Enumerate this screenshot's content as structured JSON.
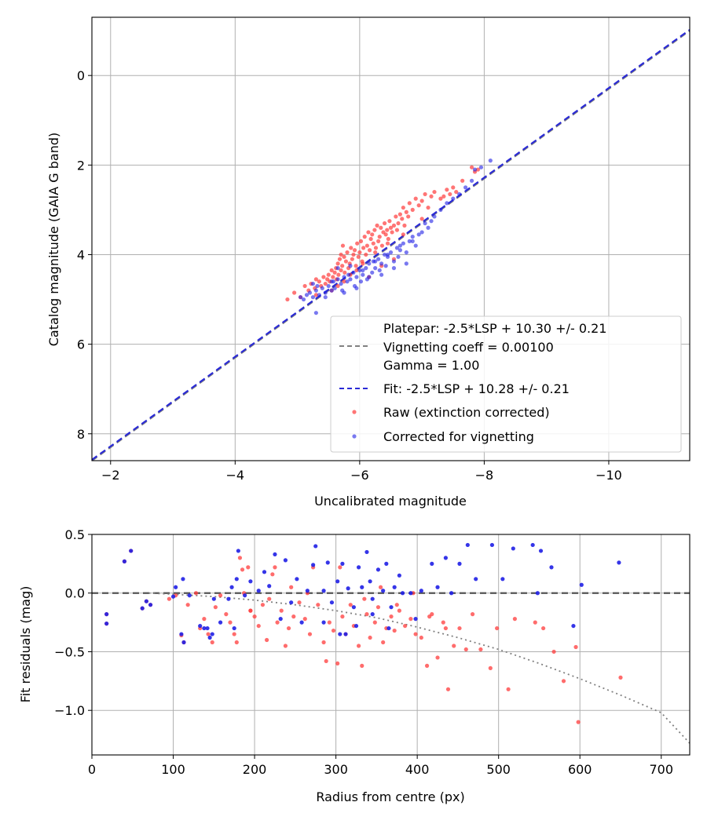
{
  "chart_data": [
    {
      "type": "scatter",
      "xlabel": "Uncalibrated magnitude",
      "ylabel": "Catalog magnitude (GAIA G band)",
      "xlim": [
        -1.7,
        -11.3
      ],
      "ylim": [
        8.6,
        -1.3
      ],
      "x_inverted": true,
      "y_inverted": true,
      "xticks": [
        -2,
        -4,
        -6,
        -8,
        -10
      ],
      "xtick_labels": [
        "−2",
        "−4",
        "−6",
        "−8",
        "−10"
      ],
      "yticks": [
        0,
        2,
        4,
        6,
        8
      ],
      "ytick_labels": [
        "0",
        "2",
        "4",
        "6",
        "8"
      ],
      "grid": true,
      "legend_position": "lower-right",
      "lines": [
        {
          "name": "Platepar: -2.5*LSP + 10.30 +/- 0.21\nVignetting coeff = 0.00100\nGamma = 1.00",
          "color": "#808080",
          "style": "dashed",
          "x": [
            -1.7,
            -11.3
          ],
          "y": [
            8.6,
            -1.0
          ]
        },
        {
          "name": "Fit: -2.5*LSP + 10.28 +/- 0.21",
          "color": "#2a2ad6",
          "style": "dashed",
          "x": [
            -1.7,
            -11.3
          ],
          "y": [
            8.58,
            -1.02
          ]
        }
      ],
      "series": [
        {
          "name": "Raw (extinction corrected)",
          "color": "#ff3b3b",
          "x": [
            -4.84,
            -4.95,
            -5.05,
            -5.12,
            -5.18,
            -5.22,
            -5.28,
            -5.3,
            -5.3,
            -5.35,
            -5.38,
            -5.42,
            -5.45,
            -5.48,
            -5.5,
            -5.52,
            -5.55,
            -5.57,
            -5.6,
            -5.62,
            -5.63,
            -5.65,
            -5.66,
            -5.68,
            -5.7,
            -5.72,
            -5.73,
            -5.75,
            -5.76,
            -5.78,
            -5.8,
            -5.82,
            -5.84,
            -5.86,
            -5.88,
            -5.9,
            -5.92,
            -5.94,
            -5.96,
            -5.98,
            -6.0,
            -6.02,
            -6.04,
            -6.06,
            -6.08,
            -6.1,
            -6.12,
            -6.14,
            -6.16,
            -6.18,
            -6.2,
            -6.22,
            -6.24,
            -6.26,
            -6.28,
            -6.3,
            -6.32,
            -6.34,
            -6.36,
            -6.38,
            -6.4,
            -6.42,
            -6.44,
            -6.46,
            -6.48,
            -6.5,
            -6.52,
            -6.55,
            -6.58,
            -6.6,
            -6.62,
            -6.65,
            -6.68,
            -6.7,
            -6.72,
            -6.75,
            -6.78,
            -6.8,
            -6.85,
            -6.9,
            -6.95,
            -7.0,
            -7.05,
            -7.1,
            -7.15,
            -7.2,
            -7.3,
            -7.35,
            -7.4,
            -7.45,
            -7.5,
            -7.55,
            -7.65,
            -7.8,
            -7.85,
            -7.9,
            -5.75,
            -5.95,
            -6.15,
            -6.35,
            -6.55,
            -5.65,
            -5.85,
            -6.05,
            -6.25,
            -6.45,
            -6.7,
            -7.0,
            -5.55,
            -5.7
          ],
          "y": [
            5.0,
            4.85,
            4.95,
            4.7,
            4.8,
            4.65,
            4.75,
            4.55,
            4.9,
            4.6,
            4.7,
            4.5,
            4.65,
            4.55,
            4.45,
            4.6,
            4.35,
            4.5,
            4.4,
            4.3,
            4.55,
            4.2,
            4.45,
            4.1,
            4.35,
            4.25,
            3.8,
            4.05,
            4.4,
            4.15,
            3.95,
            4.3,
            4.2,
            3.85,
            4.1,
            4.0,
            3.9,
            4.25,
            3.75,
            4.05,
            3.95,
            3.7,
            4.15,
            3.85,
            3.6,
            4.0,
            3.8,
            3.5,
            3.9,
            3.65,
            3.55,
            3.75,
            3.45,
            3.85,
            3.35,
            3.7,
            3.6,
            3.4,
            3.8,
            3.5,
            3.3,
            3.55,
            3.45,
            3.65,
            3.25,
            3.4,
            3.5,
            3.35,
            3.15,
            3.45,
            3.3,
            3.1,
            3.2,
            2.95,
            3.35,
            3.05,
            3.15,
            2.85,
            3.0,
            2.75,
            2.9,
            2.8,
            2.65,
            2.95,
            2.7,
            2.6,
            2.75,
            2.7,
            2.55,
            2.65,
            2.5,
            2.6,
            2.35,
            2.05,
            2.15,
            2.1,
            4.6,
            4.35,
            4.5,
            4.25,
            4.1,
            4.7,
            4.45,
            4.2,
            3.95,
            3.75,
            3.55,
            3.2,
            4.8,
            4.0
          ]
        },
        {
          "name": "Corrected for vignetting",
          "color": "#1f1fe6",
          "x": [
            -5.05,
            -5.1,
            -5.15,
            -5.2,
            -5.25,
            -5.3,
            -5.32,
            -5.35,
            -5.4,
            -5.45,
            -5.5,
            -5.55,
            -5.58,
            -5.6,
            -5.65,
            -5.7,
            -5.72,
            -5.75,
            -5.8,
            -5.82,
            -5.85,
            -5.9,
            -5.92,
            -5.95,
            -6.0,
            -6.02,
            -6.05,
            -6.1,
            -6.12,
            -6.15,
            -6.2,
            -6.22,
            -6.25,
            -6.3,
            -6.32,
            -6.35,
            -6.4,
            -6.42,
            -6.45,
            -6.5,
            -6.55,
            -6.6,
            -6.62,
            -6.65,
            -6.7,
            -6.75,
            -6.8,
            -6.85,
            -6.9,
            -6.95,
            -7.0,
            -7.05,
            -7.1,
            -7.2,
            -7.3,
            -7.4,
            -7.5,
            -7.6,
            -7.7,
            -7.8,
            -7.85,
            -7.95,
            -8.1,
            -5.25,
            -5.3,
            -5.55,
            -5.75,
            -5.95,
            -6.15,
            -6.35,
            -6.55,
            -6.75,
            -5.45,
            -5.65,
            -5.85,
            -6.05,
            -6.25,
            -6.45,
            -6.65,
            -6.85,
            -7.15
          ],
          "y": [
            4.95,
            5.0,
            4.9,
            4.85,
            4.95,
            4.8,
            4.7,
            4.9,
            4.75,
            4.85,
            4.7,
            4.8,
            4.6,
            4.75,
            4.55,
            4.65,
            4.8,
            4.5,
            4.6,
            4.45,
            4.55,
            4.4,
            4.7,
            4.5,
            4.35,
            4.6,
            4.45,
            4.3,
            4.55,
            4.2,
            4.4,
            4.15,
            4.3,
            4.1,
            4.35,
            4.2,
            4.0,
            4.25,
            4.05,
            3.95,
            4.15,
            3.85,
            4.05,
            3.9,
            3.75,
            3.95,
            3.7,
            3.6,
            3.8,
            3.55,
            3.5,
            3.3,
            3.4,
            3.15,
            3.0,
            2.85,
            2.75,
            2.65,
            2.5,
            2.35,
            2.1,
            2.05,
            1.9,
            4.65,
            5.3,
            4.6,
            4.85,
            4.75,
            4.5,
            4.45,
            4.3,
            4.2,
            4.95,
            4.3,
            4.25,
            4.35,
            4.15,
            4.0,
            3.8,
            3.7,
            3.25
          ]
        }
      ]
    },
    {
      "type": "scatter",
      "xlabel": "Radius from centre (px)",
      "ylabel": "Fit residuals (mag)",
      "xlim": [
        0,
        735
      ],
      "ylim": [
        -1.38,
        0.5
      ],
      "xticks": [
        0,
        100,
        200,
        300,
        400,
        500,
        600,
        700
      ],
      "xtick_labels": [
        "0",
        "100",
        "200",
        "300",
        "400",
        "500",
        "600",
        "700"
      ],
      "yticks": [
        0.5,
        0.0,
        -0.5,
        -1.0
      ],
      "ytick_labels": [
        "0.5",
        "0.0",
        "−0.5",
        "−1.0"
      ],
      "grid": true,
      "lines": [
        {
          "color": "#555555",
          "style": "dashed",
          "x": [
            0,
            735
          ],
          "y": [
            0,
            0
          ]
        },
        {
          "color": "#808080",
          "style": "dotted",
          "x": [
            70,
            100,
            150,
            200,
            250,
            300,
            350,
            400,
            450,
            500,
            550,
            600,
            650,
            700,
            735
          ],
          "y": [
            0.0,
            -0.01,
            -0.03,
            -0.06,
            -0.1,
            -0.15,
            -0.21,
            -0.29,
            -0.38,
            -0.48,
            -0.6,
            -0.73,
            -0.87,
            -1.02,
            -1.28
          ]
        }
      ],
      "series": [
        {
          "name": "Raw",
          "color": "#ff3b3b",
          "x": [
            18,
            18,
            40,
            48,
            62,
            67,
            72,
            95,
            103,
            110,
            113,
            118,
            128,
            133,
            138,
            143,
            148,
            152,
            158,
            165,
            170,
            175,
            178,
            182,
            187,
            192,
            195,
            200,
            205,
            210,
            215,
            218,
            222,
            228,
            233,
            238,
            242,
            248,
            255,
            262,
            268,
            272,
            278,
            285,
            288,
            292,
            297,
            302,
            308,
            312,
            318,
            322,
            328,
            332,
            338,
            342,
            348,
            352,
            358,
            362,
            368,
            372,
            378,
            385,
            392,
            398,
            405,
            412,
            418,
            425,
            432,
            438,
            445,
            452,
            460,
            468,
            478,
            490,
            498,
            512,
            520,
            545,
            555,
            568,
            580,
            595,
            598,
            650,
            225,
            245,
            265,
            305,
            335,
            355,
            375,
            395,
            415,
            435,
            185,
            195
          ],
          "y": [
            -0.18,
            -0.26,
            0.27,
            0.36,
            -0.13,
            -0.07,
            -0.1,
            -0.05,
            -0.02,
            -0.36,
            -0.42,
            -0.1,
            0.0,
            -0.3,
            -0.22,
            -0.35,
            -0.42,
            -0.12,
            -0.02,
            -0.18,
            -0.25,
            -0.35,
            -0.42,
            0.3,
            0.0,
            0.22,
            -0.15,
            -0.2,
            -0.28,
            -0.1,
            -0.4,
            -0.05,
            0.16,
            -0.25,
            -0.15,
            -0.45,
            -0.3,
            -0.2,
            -0.08,
            -0.22,
            -0.35,
            0.22,
            -0.1,
            -0.42,
            -0.58,
            -0.25,
            -0.32,
            -0.6,
            -0.2,
            -0.35,
            -0.1,
            -0.28,
            -0.45,
            -0.62,
            -0.18,
            -0.38,
            -0.25,
            -0.12,
            -0.42,
            -0.3,
            -0.2,
            -0.32,
            -0.15,
            -0.28,
            -0.22,
            -0.35,
            -0.38,
            -0.62,
            -0.18,
            -0.55,
            -0.25,
            -0.82,
            -0.45,
            -0.3,
            -0.48,
            -0.18,
            -0.48,
            -0.64,
            -0.3,
            -0.82,
            -0.22,
            -0.25,
            -0.3,
            -0.5,
            -0.75,
            -0.46,
            -1.1,
            -0.72,
            0.22,
            0.05,
            0.0,
            0.22,
            -0.05,
            0.05,
            -0.1,
            0.0,
            -0.2,
            -0.3,
            0.2,
            -0.15
          ]
        },
        {
          "name": "Corrected",
          "color": "#1f1fe6",
          "x": [
            18,
            18,
            40,
            48,
            62,
            67,
            72,
            100,
            103,
            110,
            112,
            113,
            120,
            133,
            138,
            142,
            145,
            148,
            150,
            158,
            168,
            172,
            175,
            178,
            180,
            188,
            195,
            205,
            212,
            218,
            225,
            232,
            238,
            245,
            252,
            258,
            265,
            272,
            275,
            285,
            290,
            295,
            302,
            308,
            312,
            315,
            322,
            328,
            332,
            338,
            342,
            345,
            352,
            358,
            362,
            368,
            372,
            378,
            382,
            392,
            398,
            405,
            418,
            425,
            435,
            442,
            452,
            462,
            472,
            492,
            505,
            518,
            542,
            548,
            552,
            565,
            592,
            602,
            648,
            325,
            345,
            365,
            285,
            305
          ],
          "y": [
            -0.18,
            -0.26,
            0.27,
            0.36,
            -0.13,
            -0.07,
            -0.1,
            -0.03,
            0.05,
            -0.35,
            0.12,
            -0.42,
            -0.02,
            -0.28,
            -0.3,
            -0.3,
            -0.38,
            -0.35,
            -0.05,
            -0.25,
            -0.05,
            0.05,
            -0.3,
            0.12,
            0.36,
            -0.02,
            0.1,
            0.02,
            0.18,
            0.06,
            0.33,
            -0.22,
            0.28,
            -0.08,
            0.12,
            -0.25,
            0.02,
            0.24,
            0.4,
            0.02,
            0.26,
            -0.08,
            0.1,
            0.25,
            -0.35,
            0.04,
            -0.12,
            0.22,
            0.05,
            0.35,
            0.1,
            -0.05,
            0.2,
            0.02,
            0.25,
            -0.12,
            0.05,
            0.15,
            0.0,
            0.0,
            -0.22,
            0.02,
            0.25,
            0.05,
            0.3,
            0.0,
            0.25,
            0.41,
            0.12,
            0.41,
            0.12,
            0.38,
            0.41,
            0.0,
            0.36,
            0.22,
            -0.28,
            0.07,
            0.26,
            -0.28,
            -0.18,
            -0.3,
            -0.25,
            -0.35
          ]
        }
      ]
    }
  ]
}
